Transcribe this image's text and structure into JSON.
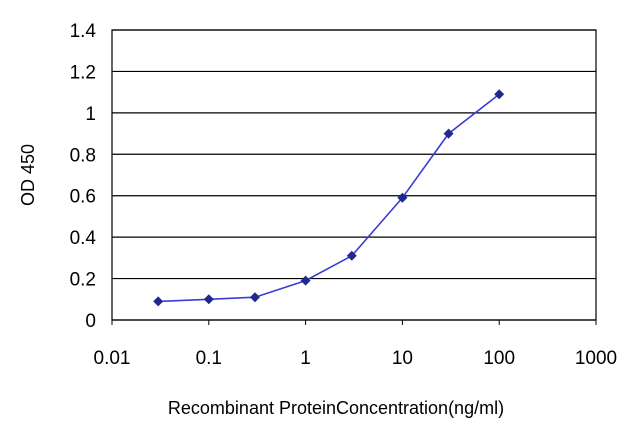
{
  "chart_data": {
    "type": "line",
    "title": "",
    "xlabel": "Recombinant ProteinConcentration(ng/ml)",
    "ylabel": "OD 450",
    "x_scale": "log",
    "xlim": [
      0.01,
      1000
    ],
    "ylim": [
      0,
      1.4
    ],
    "x_ticks": [
      "0.01",
      "0.1",
      "1",
      "10",
      "100",
      "1000"
    ],
    "y_ticks": [
      "0",
      "0.2",
      "0.4",
      "0.6",
      "0.8",
      "1",
      "1.2",
      "1.4"
    ],
    "grid": "horizontal",
    "series": [
      {
        "x": [
          0.03,
          0.1,
          0.3,
          1,
          3,
          10,
          30,
          100
        ],
        "y": [
          0.09,
          0.1,
          0.11,
          0.19,
          0.31,
          0.59,
          0.9,
          1.09
        ]
      }
    ],
    "colors": {
      "line": "#3b3bd6",
      "marker": "#1f2a8c",
      "grid": "#000000"
    }
  }
}
